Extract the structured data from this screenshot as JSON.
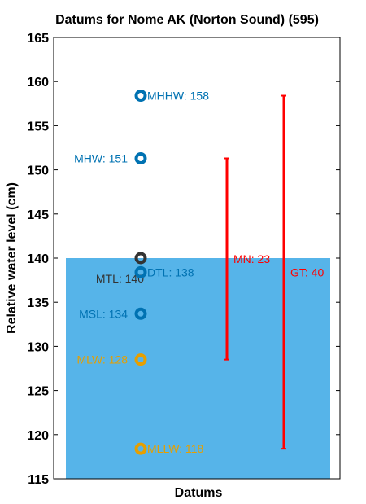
{
  "chart_data": {
    "type": "scatter",
    "title": "Datums for Nome AK (Norton Sound) (595)",
    "xlabel": "Datums",
    "ylabel": "Relative water level (cm)",
    "ylim": [
      115,
      165
    ],
    "yticks": [
      "115",
      "120",
      "125",
      "130",
      "135",
      "140",
      "145",
      "150",
      "155",
      "160",
      "165"
    ],
    "grid": false,
    "fill_band": {
      "from": 115,
      "to": 140,
      "color": "#56b4e9"
    },
    "datums": [
      {
        "label": "MHHW: 158",
        "value": 158.4,
        "color": "#0072b2",
        "label_side": "right"
      },
      {
        "label": "MHW: 151",
        "value": 151.3,
        "color": "#0072b2",
        "label_side": "left"
      },
      {
        "label": "MTL: 140",
        "value": 140.0,
        "color": "#333333",
        "label_side": "below-left"
      },
      {
        "label": "DTL: 138",
        "value": 138.4,
        "color": "#0072b2",
        "label_side": "right"
      },
      {
        "label": "MSL: 134",
        "value": 133.7,
        "color": "#0072b2",
        "label_side": "left"
      },
      {
        "label": "MLW: 128",
        "value": 128.5,
        "color": "#e69f00",
        "label_side": "left"
      },
      {
        "label": "MLLW: 118",
        "value": 118.4,
        "color": "#e69f00",
        "label_side": "right"
      }
    ],
    "ranges": [
      {
        "label": "MN: 23",
        "low": 128.5,
        "high": 151.3,
        "color": "#ff0000",
        "position": "right-inner"
      },
      {
        "label": "GT: 40",
        "low": 118.4,
        "high": 158.4,
        "color": "#ff0000",
        "position": "right-outer"
      }
    ]
  }
}
